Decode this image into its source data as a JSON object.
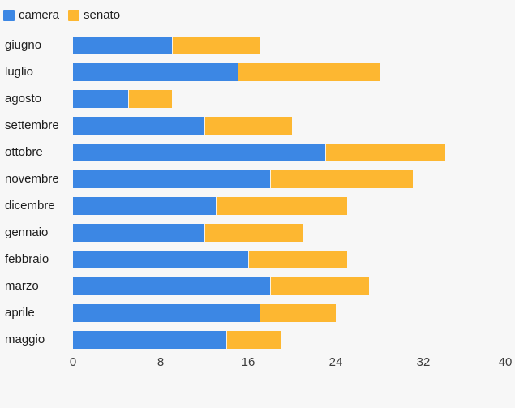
{
  "page": {
    "background": "#f7f7f7",
    "text_color": "#1d1d1d",
    "tick_color": "#3d3d3d"
  },
  "chart_data": {
    "type": "bar",
    "orientation": "horizontal",
    "stacked": true,
    "title": "",
    "xlabel": "",
    "ylabel": "",
    "categories": [
      "giugno",
      "luglio",
      "agosto",
      "settembre",
      "ottobre",
      "novembre",
      "dicembre",
      "gennaio",
      "febbraio",
      "marzo",
      "aprile",
      "maggio"
    ],
    "series": [
      {
        "name": "camera",
        "color": "#3c87e4",
        "values": [
          9,
          15,
          5,
          12,
          23,
          18,
          13,
          12,
          16,
          18,
          17,
          14
        ]
      },
      {
        "name": "senato",
        "color": "#fdb731",
        "values": [
          8,
          13,
          4,
          8,
          11,
          13,
          12,
          9,
          9,
          9,
          7,
          5
        ]
      }
    ],
    "xlim": [
      0,
      40
    ],
    "xticks": [
      0,
      8,
      16,
      24,
      32,
      40
    ],
    "grid": false,
    "legend_position": "top-left"
  }
}
